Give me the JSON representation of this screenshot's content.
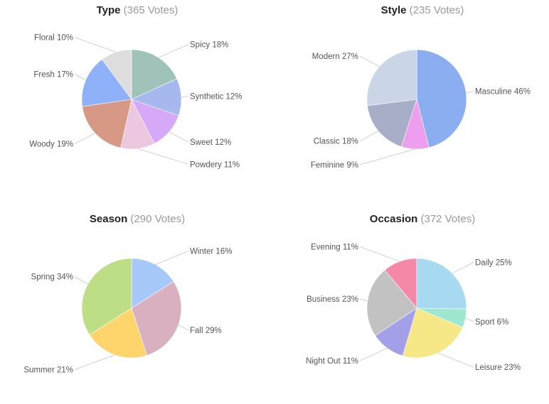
{
  "chart_data": [
    {
      "type": "pie",
      "title": "Type",
      "votes_text": "(365 Votes)",
      "slices": [
        {
          "label": "Spicy",
          "pct_text": "18%",
          "value": 18,
          "color": "#9fc3b8"
        },
        {
          "label": "Synthetic",
          "pct_text": "12%",
          "value": 12,
          "color": "#a7b8ef"
        },
        {
          "label": "Sweet",
          "pct_text": "12%",
          "value": 12,
          "color": "#d5a9f7"
        },
        {
          "label": "Powdery",
          "pct_text": "11%",
          "value": 11,
          "color": "#ebc8e0"
        },
        {
          "label": "Woody",
          "pct_text": "19%",
          "value": 19,
          "color": "#d79986"
        },
        {
          "label": "Fresh",
          "pct_text": "17%",
          "value": 17,
          "color": "#8fb1f9"
        },
        {
          "label": "Floral",
          "pct_text": "10%",
          "value": 10,
          "color": "#dddddd"
        }
      ]
    },
    {
      "type": "pie",
      "title": "Style",
      "votes_text": "(235 Votes)",
      "slices": [
        {
          "label": "Masculine",
          "pct_text": "46%",
          "value": 46,
          "color": "#8aaeef"
        },
        {
          "label": "Feminine",
          "pct_text": "9%",
          "value": 9,
          "color": "#ee9eee"
        },
        {
          "label": "Classic",
          "pct_text": "18%",
          "value": 18,
          "color": "#a9aec8"
        },
        {
          "label": "Modern",
          "pct_text": "27%",
          "value": 27,
          "color": "#cbd5e8"
        }
      ]
    },
    {
      "type": "pie",
      "title": "Season",
      "votes_text": "(290 Votes)",
      "slices": [
        {
          "label": "Winter",
          "pct_text": "16%",
          "value": 16,
          "color": "#a7c9f9"
        },
        {
          "label": "Fall",
          "pct_text": "29%",
          "value": 29,
          "color": "#d8b0bf"
        },
        {
          "label": "Summer",
          "pct_text": "21%",
          "value": 21,
          "color": "#fed56c"
        },
        {
          "label": "Spring",
          "pct_text": "34%",
          "value": 34,
          "color": "#bdde85"
        }
      ]
    },
    {
      "type": "pie",
      "title": "Occasion",
      "votes_text": "(372 Votes)",
      "slices": [
        {
          "label": "Daily",
          "pct_text": "25%",
          "value": 25,
          "color": "#a7daf0"
        },
        {
          "label": "Sport",
          "pct_text": "6%",
          "value": 6,
          "color": "#9ee8d2"
        },
        {
          "label": "Leisure",
          "pct_text": "23%",
          "value": 23,
          "color": "#f6e887"
        },
        {
          "label": "Night Out",
          "pct_text": "11%",
          "value": 11,
          "color": "#a39fe8"
        },
        {
          "label": "Business",
          "pct_text": "23%",
          "value": 23,
          "color": "#c2c2c2"
        },
        {
          "label": "Evening",
          "pct_text": "11%",
          "value": 11,
          "color": "#f587a8"
        }
      ]
    }
  ]
}
